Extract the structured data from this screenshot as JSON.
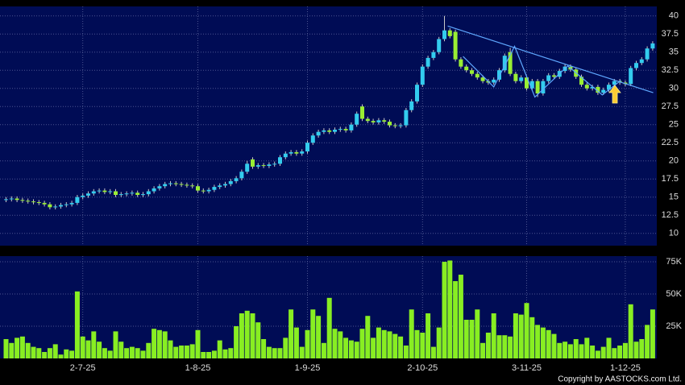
{
  "chart_data": {
    "type": "candlestick",
    "categories": [
      null,
      null,
      null,
      null,
      null,
      null,
      null,
      null,
      null,
      null,
      null,
      null,
      null,
      null,
      "2-7-25",
      null,
      null,
      null,
      null,
      null,
      null,
      null,
      null,
      null,
      null,
      null,
      null,
      null,
      null,
      null,
      null,
      null,
      null,
      null,
      null,
      "1-8-25",
      null,
      null,
      null,
      null,
      null,
      null,
      null,
      null,
      null,
      null,
      null,
      null,
      null,
      null,
      null,
      null,
      null,
      null,
      null,
      "1-9-25",
      null,
      null,
      null,
      null,
      null,
      null,
      null,
      null,
      null,
      null,
      null,
      null,
      null,
      null,
      null,
      null,
      null,
      null,
      null,
      null,
      "2-10-25",
      null,
      null,
      null,
      null,
      null,
      null,
      null,
      null,
      null,
      null,
      null,
      null,
      null,
      null,
      null,
      null,
      null,
      null,
      "3-11-25",
      null,
      null,
      null,
      null,
      null,
      null,
      null,
      null,
      null,
      null,
      null,
      null,
      null,
      null,
      null,
      null,
      null,
      "1-12-25",
      null,
      null,
      null,
      null,
      null
    ],
    "open": [
      14.6,
      14.7,
      14.8,
      14.6,
      14.5,
      14.4,
      14.3,
      14.2,
      14.0,
      13.6,
      13.7,
      13.9,
      14.0,
      14.2,
      15.0,
      15.2,
      15.5,
      15.8,
      15.9,
      15.7,
      15.8,
      15.3,
      15.4,
      15.5,
      15.6,
      15.3,
      15.4,
      15.8,
      16.2,
      16.5,
      16.8,
      16.9,
      16.8,
      16.7,
      16.6,
      16.5,
      15.9,
      15.8,
      16.0,
      16.4,
      16.6,
      16.8,
      17.2,
      17.6,
      18.5,
      20.2,
      19.2,
      19.4,
      19.3,
      19.5,
      19.6,
      20.5,
      21.0,
      21.2,
      21.0,
      21.3,
      22.5,
      23.5,
      24.0,
      24.2,
      24.0,
      24.3,
      24.4,
      24.2,
      25.0,
      27.5,
      25.8,
      25.5,
      25.3,
      25.6,
      25.4,
      24.9,
      24.8,
      24.9,
      27.0,
      28.2,
      30.5,
      33.0,
      34.2,
      35.0,
      36.8,
      38.0,
      37.8,
      34.0,
      33.0,
      32.5,
      32.0,
      31.5,
      31.0,
      30.8,
      31.2,
      32.5,
      35.0,
      32.0,
      31.0,
      31.5,
      30.0,
      31.0,
      29.3,
      31.0,
      31.8,
      31.6,
      32.4,
      33.0,
      32.6,
      31.6,
      30.5,
      30.0,
      30.2,
      29.4,
      29.8,
      30.5,
      31.0,
      30.8,
      30.6,
      32.8,
      33.5,
      34.0,
      35.5
    ],
    "high": [
      15.0,
      15.1,
      15.1,
      14.9,
      14.8,
      14.7,
      14.6,
      14.5,
      14.3,
      14.0,
      14.2,
      14.3,
      14.5,
      15.3,
      15.5,
      15.8,
      16.1,
      16.2,
      16.2,
      16.1,
      16.1,
      15.7,
      15.8,
      15.9,
      15.9,
      15.7,
      16.1,
      16.5,
      16.8,
      17.1,
      17.2,
      17.2,
      17.1,
      17.0,
      16.9,
      16.8,
      16.2,
      16.3,
      16.7,
      16.9,
      17.1,
      17.5,
      17.9,
      18.8,
      20.0,
      20.5,
      19.7,
      19.7,
      19.8,
      19.9,
      20.8,
      21.3,
      21.5,
      21.5,
      21.6,
      22.8,
      23.8,
      24.3,
      24.5,
      24.5,
      24.6,
      24.7,
      24.7,
      25.3,
      26.8,
      27.8,
      26.1,
      25.8,
      25.9,
      25.9,
      25.7,
      25.2,
      25.2,
      27.3,
      28.5,
      30.8,
      33.3,
      34.5,
      35.3,
      37.1,
      40.0,
      38.3,
      38.1,
      34.3,
      33.3,
      32.8,
      32.3,
      31.8,
      31.3,
      31.5,
      32.8,
      34.8,
      35.6,
      32.3,
      31.8,
      31.8,
      31.3,
      31.3,
      31.3,
      32.1,
      32.1,
      32.7,
      33.3,
      33.3,
      32.9,
      31.9,
      30.8,
      30.5,
      30.5,
      30.1,
      30.8,
      31.3,
      31.3,
      31.1,
      33.1,
      33.8,
      34.3,
      35.8,
      36.5
    ],
    "low": [
      14.3,
      14.4,
      14.3,
      14.2,
      14.1,
      14.0,
      13.9,
      13.7,
      13.3,
      13.3,
      13.4,
      13.6,
      13.7,
      13.9,
      14.7,
      14.9,
      15.2,
      15.5,
      15.4,
      15.4,
      15.0,
      15.0,
      15.1,
      15.2,
      15.0,
      15.0,
      15.1,
      15.5,
      15.9,
      16.2,
      16.5,
      16.5,
      16.4,
      16.3,
      16.2,
      15.6,
      15.5,
      15.5,
      15.7,
      16.1,
      16.3,
      16.5,
      16.9,
      17.3,
      18.2,
      18.9,
      18.9,
      19.0,
      19.0,
      19.2,
      19.3,
      20.2,
      20.7,
      20.7,
      20.7,
      21.0,
      22.2,
      23.2,
      23.7,
      23.7,
      23.7,
      24.0,
      23.9,
      23.9,
      24.7,
      25.5,
      25.2,
      25.0,
      25.0,
      25.1,
      24.6,
      24.5,
      24.5,
      24.6,
      26.7,
      27.9,
      30.2,
      32.7,
      33.9,
      34.7,
      36.5,
      36.9,
      33.7,
      32.7,
      32.2,
      31.7,
      31.2,
      30.7,
      30.5,
      30.5,
      30.9,
      32.2,
      31.7,
      30.7,
      30.7,
      29.7,
      29.7,
      28.8,
      29.0,
      30.7,
      31.3,
      31.3,
      32.1,
      32.3,
      31.3,
      30.2,
      29.7,
      29.7,
      29.1,
      29.1,
      29.5,
      30.2,
      30.5,
      30.3,
      30.3,
      32.5,
      33.2,
      33.7,
      35.2
    ],
    "close": [
      14.7,
      14.8,
      14.6,
      14.5,
      14.4,
      14.3,
      14.2,
      14.0,
      13.6,
      13.7,
      13.9,
      14.0,
      14.2,
      15.0,
      15.2,
      15.5,
      15.8,
      15.9,
      15.7,
      15.8,
      15.3,
      15.4,
      15.5,
      15.6,
      15.3,
      15.4,
      15.8,
      16.2,
      16.5,
      16.8,
      16.9,
      16.8,
      16.7,
      16.6,
      16.5,
      15.9,
      15.8,
      16.0,
      16.4,
      16.6,
      16.8,
      17.2,
      17.6,
      18.5,
      19.6,
      19.2,
      19.4,
      19.3,
      19.5,
      19.6,
      20.5,
      21.0,
      21.2,
      21.0,
      21.3,
      22.5,
      23.5,
      24.0,
      24.2,
      24.0,
      24.3,
      24.4,
      24.2,
      25.0,
      26.5,
      25.8,
      25.5,
      25.3,
      25.6,
      25.4,
      24.9,
      24.8,
      24.9,
      27.0,
      28.2,
      30.5,
      33.0,
      34.2,
      35.0,
      36.8,
      38.0,
      37.2,
      34.0,
      33.0,
      32.5,
      32.0,
      31.5,
      31.0,
      30.8,
      31.2,
      32.5,
      34.5,
      32.0,
      31.0,
      31.5,
      30.0,
      31.0,
      29.3,
      31.0,
      31.8,
      31.6,
      32.4,
      33.0,
      32.6,
      31.6,
      30.5,
      30.0,
      30.2,
      29.4,
      29.8,
      30.5,
      31.0,
      30.8,
      30.6,
      32.8,
      33.5,
      34.0,
      35.5,
      36.2
    ],
    "up_color": "#33ccee",
    "down_color": "#99ee33",
    "ylim": [
      8.3,
      41.3
    ],
    "yticks": [
      10,
      12.5,
      15,
      17.5,
      20,
      22.5,
      25,
      27.5,
      30,
      32.5,
      35,
      37.5,
      40
    ],
    "grid": true,
    "trendlines": [
      {
        "color": "#5fa8ff",
        "x": [
          80.6,
          118.1
        ],
        "y": [
          38.6,
          29.4
        ]
      },
      {
        "color": "#5fa8ff",
        "x": [
          83.4,
          89,
          92.8,
          96.5,
          102.5,
          108.8,
          112.2
        ],
        "y": [
          34.4,
          30.2,
          35.8,
          28.8,
          33.1,
          29.1,
          31.1
        ]
      }
    ],
    "volume": {
      "color": "#88ee22",
      "values": [
        15000,
        12000,
        16000,
        17000,
        12000,
        9000,
        8000,
        5000,
        8000,
        11000,
        3000,
        7000,
        6000,
        52000,
        17000,
        14000,
        21000,
        13000,
        8000,
        6000,
        21000,
        13000,
        8000,
        9000,
        8000,
        6000,
        12000,
        23000,
        22000,
        21000,
        14000,
        9000,
        10000,
        10000,
        11000,
        22000,
        5000,
        5000,
        6000,
        14000,
        7000,
        8000,
        25000,
        35000,
        37000,
        35000,
        28000,
        15000,
        9000,
        8000,
        8000,
        16000,
        38000,
        24000,
        9000,
        22000,
        38000,
        33000,
        12000,
        47000,
        23000,
        21000,
        16000,
        14000,
        13000,
        23000,
        33000,
        16000,
        24000,
        22000,
        21000,
        19000,
        17000,
        10000,
        38000,
        22000,
        20000,
        35000,
        9000,
        24000,
        75000,
        76000,
        60000,
        65000,
        30000,
        30000,
        38000,
        12000,
        20000,
        35000,
        18000,
        18000,
        17000,
        35000,
        34000,
        43000,
        32000,
        26000,
        24000,
        22000,
        19000,
        12000,
        13000,
        11000,
        15000,
        11000,
        16000,
        10000,
        6000,
        9000,
        16000,
        8000,
        10000,
        12000,
        42000,
        13000,
        15000,
        26000,
        38000
      ],
      "ylim": [
        0,
        79400
      ],
      "yticks": [
        {
          "value": 25000,
          "label": "25K"
        },
        {
          "value": 50000,
          "label": "50K"
        },
        {
          "value": 75000,
          "label": "75K"
        }
      ]
    },
    "copyright": "Copyright by AASTOCKS.com Ltd."
  }
}
